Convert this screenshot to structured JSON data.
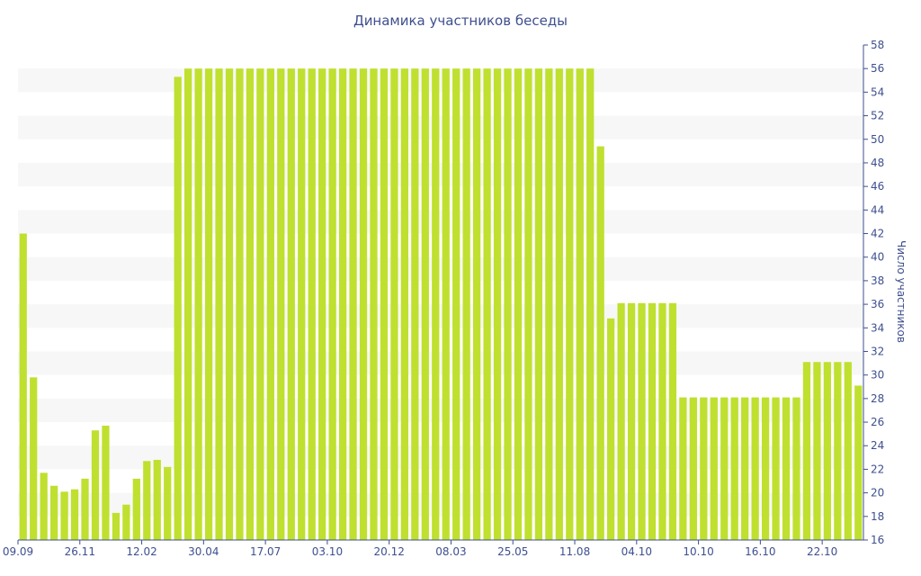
{
  "chart_data": {
    "type": "bar",
    "title": "Динамика участников беседы",
    "xlabel": "",
    "ylabel": "Число участников",
    "ylim": [
      16,
      58
    ],
    "y_tick_step": 2,
    "y_axis_side": "right",
    "grid": "alternating horizontal bands",
    "legend": "none",
    "x_tick_labels": [
      {
        "index": 0,
        "label": "09.09"
      },
      {
        "index": 6,
        "label": "26.11"
      },
      {
        "index": 12,
        "label": "12.02"
      },
      {
        "index": 18,
        "label": "30.04"
      },
      {
        "index": 24,
        "label": "17.07"
      },
      {
        "index": 30,
        "label": "03.10"
      },
      {
        "index": 36,
        "label": "20.12"
      },
      {
        "index": 42,
        "label": "08.03"
      },
      {
        "index": 48,
        "label": "25.05"
      },
      {
        "index": 54,
        "label": "11.08"
      },
      {
        "index": 60,
        "label": "04.10"
      },
      {
        "index": 66,
        "label": "10.10"
      },
      {
        "index": 72,
        "label": "16.10"
      },
      {
        "index": 78,
        "label": "22.10"
      }
    ],
    "values": [
      42,
      29.8,
      21.7,
      20.6,
      20.1,
      20.3,
      21.2,
      25.3,
      25.7,
      18.3,
      19,
      21.2,
      22.7,
      22.8,
      22.2,
      55.3,
      56,
      56,
      56,
      56,
      56,
      56,
      56,
      56,
      56,
      56,
      56,
      56,
      56,
      56,
      56,
      56,
      56,
      56,
      56,
      56,
      56,
      56,
      56,
      56,
      56,
      56,
      56,
      56,
      56,
      56,
      56,
      56,
      56,
      56,
      56,
      56,
      56,
      56,
      56,
      56,
      49.4,
      34.8,
      36.1,
      36.1,
      36.1,
      36.1,
      36.1,
      36.1,
      28.1,
      28.1,
      28.1,
      28.1,
      28.1,
      28.1,
      28.1,
      28.1,
      28.1,
      28.1,
      28.1,
      28.1,
      31.1,
      31.1,
      31.1,
      31.1,
      31.1,
      29.1
    ],
    "colors": {
      "bar": "#bfe02f",
      "band": "#f7f7f7",
      "text": "#3e4f8f",
      "axis": "#3e4f8f"
    }
  }
}
